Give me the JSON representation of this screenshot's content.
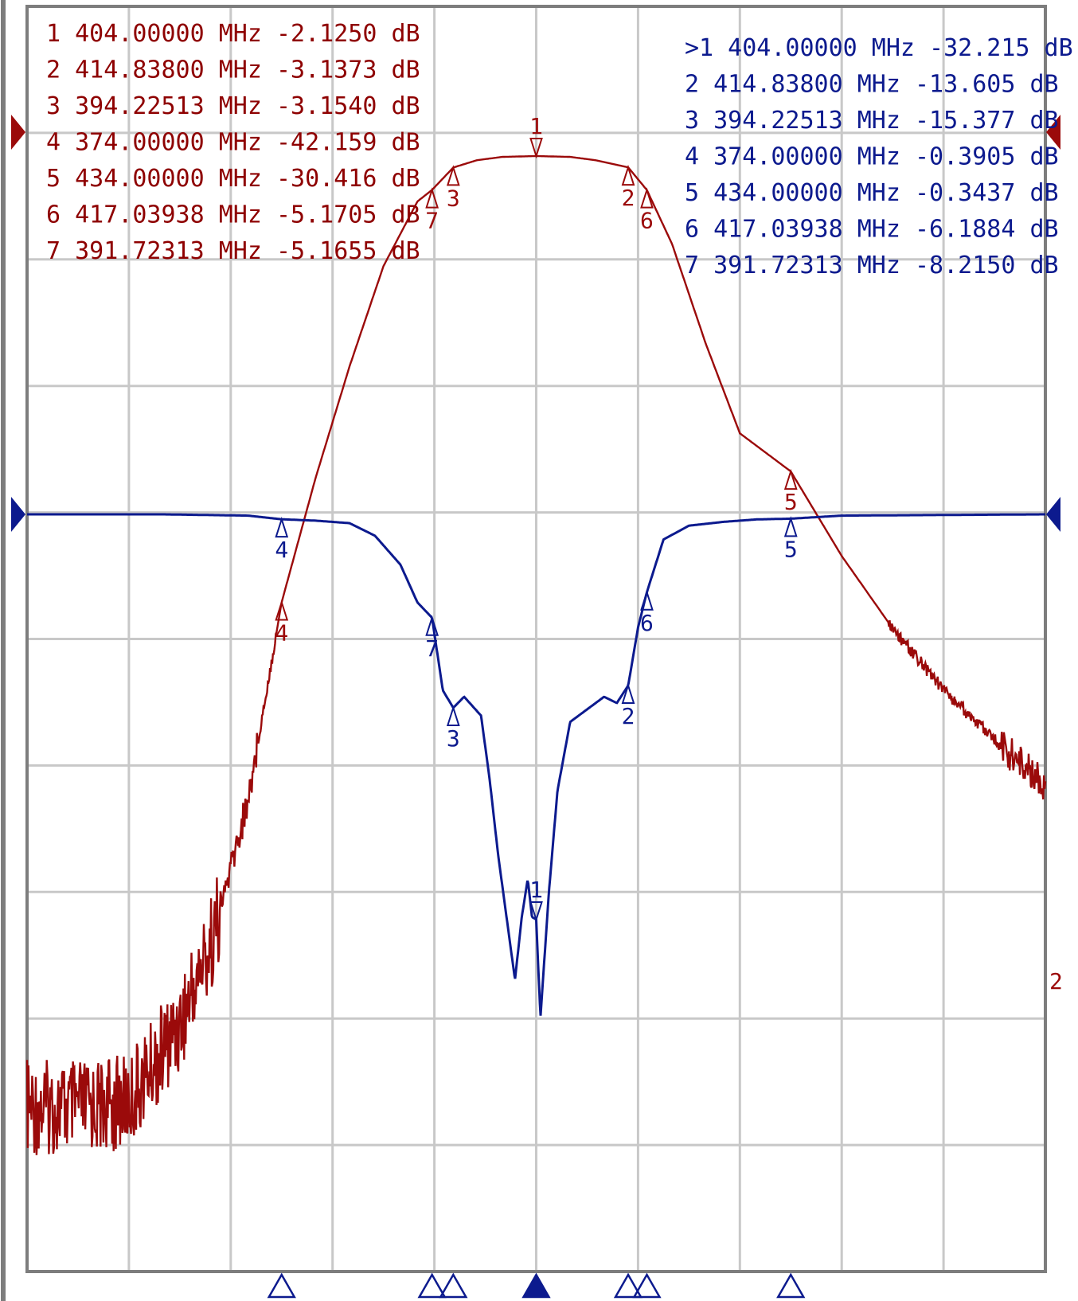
{
  "chart_data": {
    "type": "line",
    "title": "",
    "x_unit": "MHz",
    "y_unit": "dB",
    "grid": true,
    "grid_divisions": {
      "x": 10,
      "y": 10
    },
    "series": [
      {
        "name": "",
        "trace_label": "",
        "color": "#9b0a0a",
        "points_x_mhz": [
          344.0,
          350.0,
          356.0,
          362.0,
          366.0,
          370.0,
          374.0,
          378.0,
          382.0,
          386.0,
          390.0,
          391.72,
          394.23,
          397.0,
          400.0,
          404.0,
          408.0,
          411.0,
          414.84,
          417.04,
          420.0,
          424.0,
          428.0,
          434.0,
          440.0,
          446.0,
          452.0,
          458.0,
          464.0
        ],
        "points_y_db": [
          -87.5,
          -87.5,
          -87.0,
          -80.0,
          -72.0,
          -60.0,
          -42.159,
          -31.0,
          -21.0,
          -12.0,
          -6.2,
          -5.1655,
          -3.154,
          -2.5,
          -2.2,
          -2.125,
          -2.2,
          -2.5,
          -3.1373,
          -5.1705,
          -10.0,
          -19.0,
          -27.0,
          -30.416,
          -38.0,
          -44.5,
          -50.0,
          -54.5,
          -58.5
        ],
        "markers": [
          {
            "id": "1",
            "freq": "404.00000",
            "unit": "MHz",
            "value": "-2.1250",
            "value_unit": "dB",
            "x_mhz": 404.0,
            "y_db": -2.125
          },
          {
            "id": "2",
            "freq": "414.83800",
            "unit": "MHz",
            "value": "-3.1373",
            "value_unit": "dB",
            "x_mhz": 414.838,
            "y_db": -3.1373
          },
          {
            "id": "3",
            "freq": "394.22513",
            "unit": "MHz",
            "value": "-3.1540",
            "value_unit": "dB",
            "x_mhz": 394.22513,
            "y_db": -3.154
          },
          {
            "id": "4",
            "freq": "374.00000",
            "unit": "MHz",
            "value": "-42.159",
            "value_unit": "dB",
            "x_mhz": 374.0,
            "y_db": -42.159
          },
          {
            "id": "5",
            "freq": "434.00000",
            "unit": "MHz",
            "value": "-30.416",
            "value_unit": "dB",
            "x_mhz": 434.0,
            "y_db": -30.416
          },
          {
            "id": "6",
            "freq": "417.03938",
            "unit": "MHz",
            "value": "-5.1705",
            "value_unit": "dB",
            "x_mhz": 417.03938,
            "y_db": -5.1705
          },
          {
            "id": "7",
            "freq": "391.72313",
            "unit": "MHz",
            "value": "-5.1655",
            "value_unit": "dB",
            "x_mhz": 391.72313,
            "y_db": -5.1655
          }
        ]
      },
      {
        "name": "",
        "trace_label": "",
        "color": "#0c1a8e",
        "points_x_mhz": [
          344.0,
          360.0,
          370.0,
          374.0,
          378.0,
          382.0,
          385.0,
          388.0,
          390.0,
          391.72,
          393.0,
          394.23,
          395.5,
          397.5,
          398.5,
          399.5,
          400.5,
          401.5,
          402.3,
          403.0,
          403.5,
          404.0,
          404.5,
          405.5,
          406.5,
          408.0,
          410.0,
          412.0,
          413.5,
          414.84,
          416.0,
          417.04,
          419.0,
          422.0,
          426.0,
          430.0,
          434.0,
          440.0,
          464.0
        ],
        "points_y_db": [
          0.0,
          0.0,
          -0.1,
          -0.3905,
          -0.5,
          -0.7,
          -1.7,
          -4.0,
          -7.0,
          -8.215,
          -14.0,
          -15.377,
          -14.5,
          -16.0,
          -21.0,
          -27.0,
          -32.0,
          -37.0,
          -32.0,
          -29.0,
          -32.0,
          -32.215,
          -40.0,
          -30.0,
          -22.0,
          -16.5,
          -15.5,
          -14.5,
          -15.0,
          -13.605,
          -9.0,
          -6.1884,
          -2.0,
          -0.9,
          -0.6,
          -0.4,
          -0.3437,
          -0.1,
          0.0
        ],
        "markers": [
          {
            "id": "1",
            "active_prefix": ">",
            "freq": "404.00000",
            "unit": "MHz",
            "value": "-32.215",
            "value_unit": "dB",
            "x_mhz": 404.0,
            "y_db": -32.215
          },
          {
            "id": "2",
            "freq": "414.83800",
            "unit": "MHz",
            "value": "-13.605",
            "value_unit": "dB",
            "x_mhz": 414.838,
            "y_db": -13.605
          },
          {
            "id": "3",
            "freq": "394.22513",
            "unit": "MHz",
            "value": "-15.377",
            "value_unit": "dB",
            "x_mhz": 394.22513,
            "y_db": -15.377
          },
          {
            "id": "4",
            "freq": "374.00000",
            "unit": "MHz",
            "value": "-0.3905",
            "value_unit": "dB",
            "x_mhz": 374.0,
            "y_db": -0.3905
          },
          {
            "id": "5",
            "freq": "434.00000",
            "unit": "MHz",
            "value": "-0.3437",
            "value_unit": "dB",
            "x_mhz": 434.0,
            "y_db": -0.3437
          },
          {
            "id": "6",
            "freq": "417.03938",
            "unit": "MHz",
            "value": "-6.1884",
            "value_unit": "dB",
            "x_mhz": 417.03938,
            "y_db": -6.1884
          },
          {
            "id": "7",
            "freq": "391.72313",
            "unit": "MHz",
            "value": "-8.2150",
            "value_unit": "dB",
            "x_mhz": 391.72313,
            "y_db": -8.215
          }
        ]
      }
    ],
    "colors": {
      "frame": "#7d7d7d",
      "grid": "#c8c8c8",
      "background": "#ffffff"
    },
    "bottom_marker_triangles": [
      "4",
      "7",
      "3",
      "1",
      "2",
      "6",
      "5"
    ],
    "active_marker": "1",
    "trace_end_label": "2"
  }
}
